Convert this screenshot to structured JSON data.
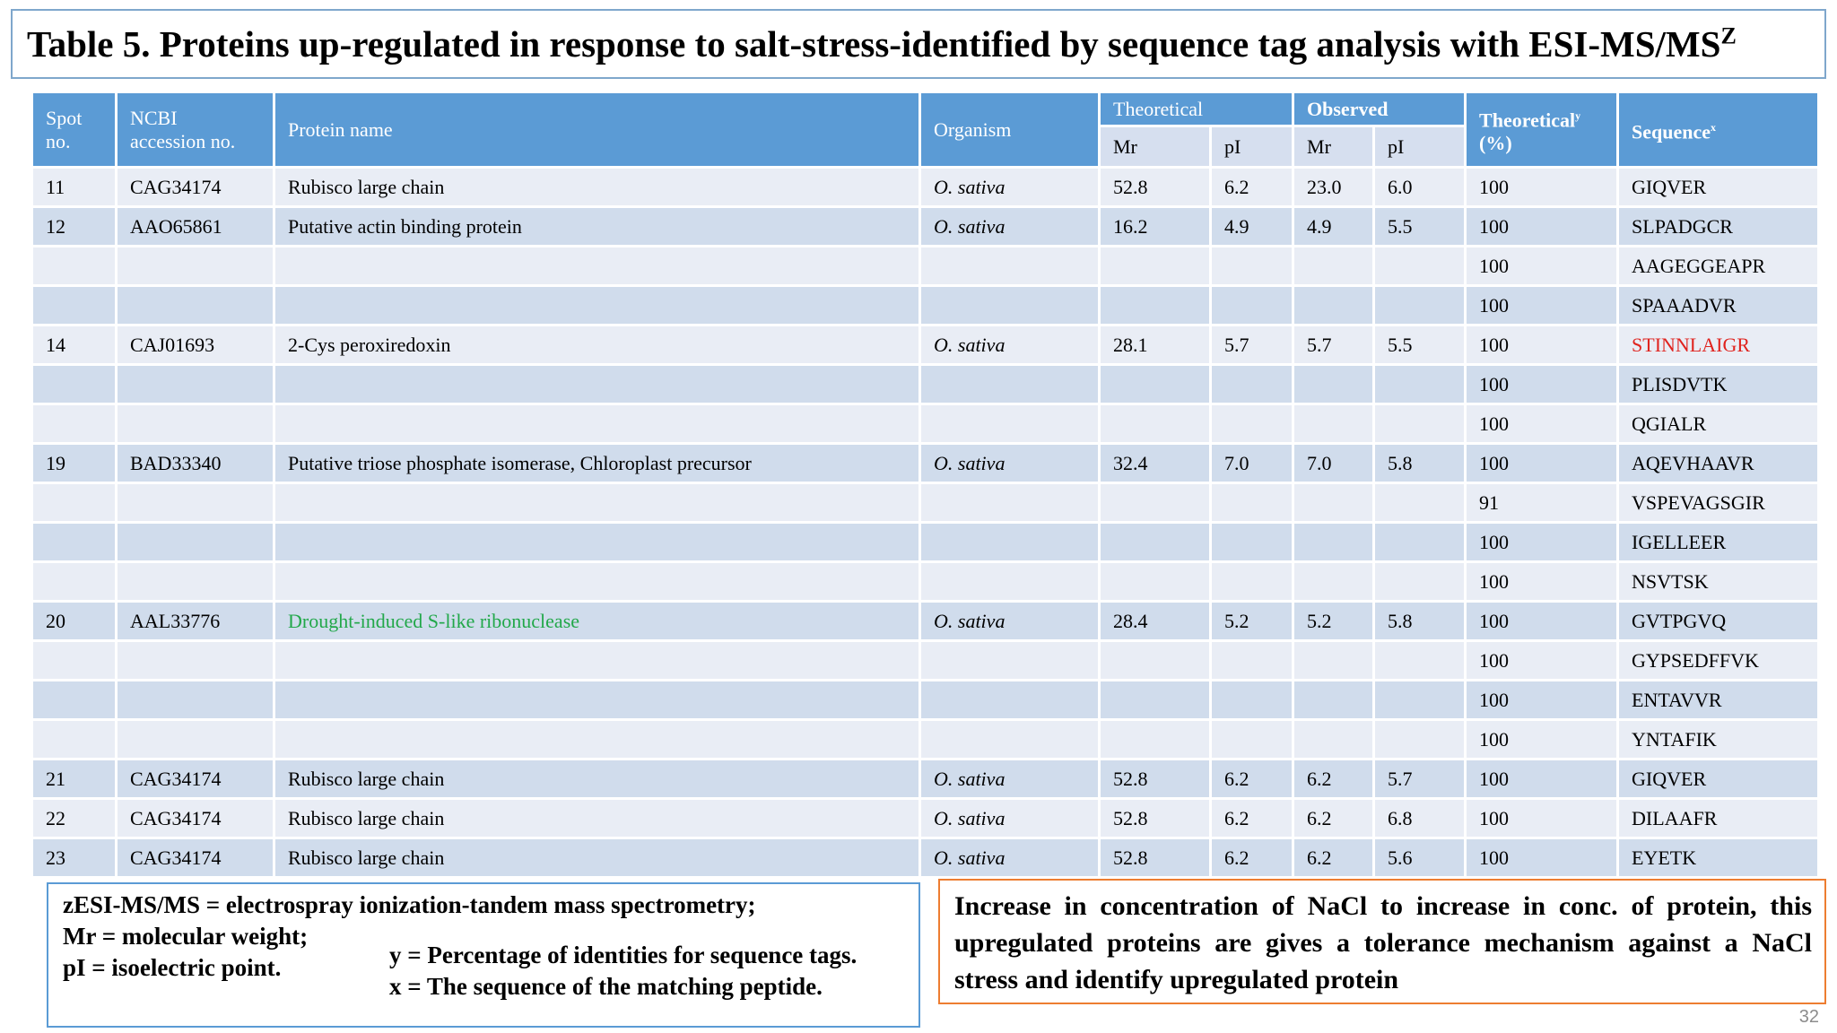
{
  "title": {
    "text": "Table 5. Proteins up-regulated in response to salt-stress-identified by sequence tag analysis with ESI-MS/MS",
    "superscript": "Z"
  },
  "table": {
    "headers": {
      "spot_line1": "Spot",
      "spot_line2": "no.",
      "ncbi_line1": "NCBI",
      "ncbi_line2": "accession no.",
      "protein": "Protein name",
      "organism": "Organism",
      "theoretical": "Theoretical",
      "observed": "Observed",
      "mr_theoretical": "Mr",
      "pi_theoretical": "pI",
      "mr_observed": "Mr",
      "pi_observed": "pI",
      "identity_line1": "Theoretical",
      "identity_sup": "y",
      "identity_line2": "(%)",
      "sequence": "Sequence",
      "sequence_sup": "x"
    },
    "rows": [
      {
        "spot": "11",
        "accession": "CAG34174",
        "protein": "Rubisco large chain",
        "organism": "O. sativa",
        "mr_t": "52.8",
        "pi_t": "6.2",
        "mr_o": "23.0",
        "pi_o": "6.0",
        "identity": "100",
        "sequence": "GIQVER",
        "highlight": ""
      },
      {
        "spot": "12",
        "accession": "AAO65861",
        "protein": "Putative actin binding protein",
        "organism": "O. sativa",
        "mr_t": "16.2",
        "pi_t": "4.9",
        "mr_o": "4.9",
        "pi_o": "5.5",
        "identity": "100",
        "sequence": "SLPADGCR",
        "highlight": ""
      },
      {
        "spot": "",
        "accession": "",
        "protein": "",
        "organism": "",
        "mr_t": "",
        "pi_t": "",
        "mr_o": "",
        "pi_o": "",
        "identity": "100",
        "sequence": "AAGEGGEAPR",
        "highlight": ""
      },
      {
        "spot": "",
        "accession": "",
        "protein": "",
        "organism": "",
        "mr_t": "",
        "pi_t": "",
        "mr_o": "",
        "pi_o": "",
        "identity": "100",
        "sequence": "SPAAADVR",
        "highlight": ""
      },
      {
        "spot": "14",
        "accession": "CAJ01693",
        "protein": "2-Cys peroxiredoxin",
        "organism": "O. sativa",
        "mr_t": "28.1",
        "pi_t": "5.7",
        "mr_o": "5.7",
        "pi_o": "5.5",
        "identity": "100",
        "sequence": "STINNLAIGR",
        "highlight": "sequence-red"
      },
      {
        "spot": "",
        "accession": "",
        "protein": "",
        "organism": "",
        "mr_t": "",
        "pi_t": "",
        "mr_o": "",
        "pi_o": "",
        "identity": "100",
        "sequence": "PLISDVTK",
        "highlight": ""
      },
      {
        "spot": "",
        "accession": "",
        "protein": "",
        "organism": "",
        "mr_t": "",
        "pi_t": "",
        "mr_o": "",
        "pi_o": "",
        "identity": "100",
        "sequence": "QGIALR",
        "highlight": ""
      },
      {
        "spot": "19",
        "accession": "BAD33340",
        "protein": "Putative triose phosphate isomerase, Chloroplast precursor",
        "organism": "O. sativa",
        "mr_t": "32.4",
        "pi_t": "7.0",
        "mr_o": "7.0",
        "pi_o": "5.8",
        "identity": "100",
        "sequence": "AQEVHAAVR",
        "highlight": ""
      },
      {
        "spot": "",
        "accession": "",
        "protein": "",
        "organism": "",
        "mr_t": "",
        "pi_t": "",
        "mr_o": "",
        "pi_o": "",
        "identity": "91",
        "sequence": "VSPEVAGSGIR",
        "highlight": ""
      },
      {
        "spot": "",
        "accession": "",
        "protein": "",
        "organism": "",
        "mr_t": "",
        "pi_t": "",
        "mr_o": "",
        "pi_o": "",
        "identity": "100",
        "sequence": "IGELLEER",
        "highlight": ""
      },
      {
        "spot": "",
        "accession": "",
        "protein": "",
        "organism": "",
        "mr_t": "",
        "pi_t": "",
        "mr_o": "",
        "pi_o": "",
        "identity": "100",
        "sequence": "NSVTSK",
        "highlight": ""
      },
      {
        "spot": "20",
        "accession": "AAL33776",
        "protein": "Drought-induced S-like ribonuclease",
        "organism": "O. sativa",
        "mr_t": "28.4",
        "pi_t": "5.2",
        "mr_o": "5.2",
        "pi_o": "5.8",
        "identity": "100",
        "sequence": "GVTPGVQ",
        "highlight": "protein-green"
      },
      {
        "spot": "",
        "accession": "",
        "protein": "",
        "organism": "",
        "mr_t": "",
        "pi_t": "",
        "mr_o": "",
        "pi_o": "",
        "identity": "100",
        "sequence": "GYPSEDFFVK",
        "highlight": ""
      },
      {
        "spot": "",
        "accession": "",
        "protein": "",
        "organism": "",
        "mr_t": "",
        "pi_t": "",
        "mr_o": "",
        "pi_o": "",
        "identity": "100",
        "sequence": "ENTAVVR",
        "highlight": ""
      },
      {
        "spot": "",
        "accession": "",
        "protein": "",
        "organism": "",
        "mr_t": "",
        "pi_t": "",
        "mr_o": "",
        "pi_o": "",
        "identity": "100",
        "sequence": "YNTAFIK",
        "highlight": ""
      },
      {
        "spot": "21",
        "accession": "CAG34174",
        "protein": "Rubisco large chain",
        "organism": "O. sativa",
        "mr_t": "52.8",
        "pi_t": "6.2",
        "mr_o": "6.2",
        "pi_o": "5.7",
        "identity": "100",
        "sequence": "GIQVER",
        "highlight": ""
      },
      {
        "spot": "22",
        "accession": "CAG34174",
        "protein": "Rubisco large chain",
        "organism": "O. sativa",
        "mr_t": "52.8",
        "pi_t": "6.2",
        "mr_o": "6.2",
        "pi_o": "6.8",
        "identity": "100",
        "sequence": "DILAAFR",
        "highlight": ""
      },
      {
        "spot": "23",
        "accession": "CAG34174",
        "protein": "Rubisco large chain",
        "organism": "O. sativa",
        "mr_t": "52.8",
        "pi_t": "6.2",
        "mr_o": "6.2",
        "pi_o": "5.6",
        "identity": "100",
        "sequence": "EYETK",
        "highlight": ""
      }
    ]
  },
  "footnotes": {
    "line1": "zESI-MS/MS = electrospray ionization-tandem mass spectrometry;",
    "line2": "Mr = molecular weight;",
    "line3": "pI = isoelectric point.",
    "line4": "y = Percentage of identities for sequence tags.",
    "line5": "x = The sequence of the matching peptide."
  },
  "conclusion": "Increase in concentration of NaCl to increase in conc. of protein, this upregulated proteins are gives a tolerance mechanism against a NaCl stress and identify upregulated protein",
  "page_number": "32",
  "colors": {
    "header_blue": "#5b9bd5",
    "subheader": "#d6dfef",
    "row_light": "#e9edf5",
    "row_dark": "#d0dcec",
    "highlight_red": "#e0231e",
    "highlight_green": "#22a84a",
    "orange_border": "#ed7d31"
  }
}
